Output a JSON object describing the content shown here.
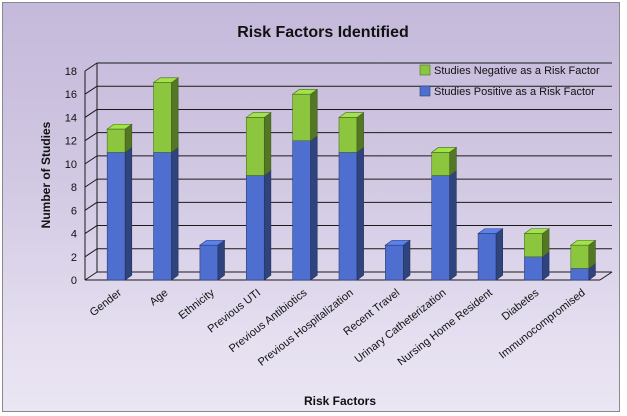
{
  "chart_data": {
    "type": "bar",
    "stacked": true,
    "title": "Risk Factors Identified",
    "xlabel": "Risk Factors",
    "ylabel": "Number of Studies",
    "ylim": [
      0,
      18
    ],
    "yticks": [
      0,
      2,
      4,
      6,
      8,
      10,
      12,
      14,
      16,
      18
    ],
    "grid": true,
    "legend_position": "top-right",
    "categories": [
      "Gender",
      "Age",
      "Ethnicity",
      "Previous UTI",
      "Previous Antibiotics",
      "Previous Hospitalization",
      "Recent Travel",
      "Urinary Catheterization",
      "Nursing Home Resident",
      "Diabetes",
      "Immunocompromised"
    ],
    "series": [
      {
        "name": "Studies Positive as a Risk Factor",
        "color": "#4f6fd0",
        "values": [
          11,
          11,
          3,
          9,
          12,
          11,
          3,
          9,
          4,
          2,
          1
        ]
      },
      {
        "name": "Studies Negative as a Risk Factor",
        "color": "#8cc63f",
        "values": [
          2,
          6,
          0,
          5,
          4,
          3,
          0,
          2,
          0,
          2,
          2
        ]
      }
    ],
    "legend_order": [
      "Studies Negative as a Risk Factor",
      "Studies Positive as a Risk Factor"
    ]
  }
}
